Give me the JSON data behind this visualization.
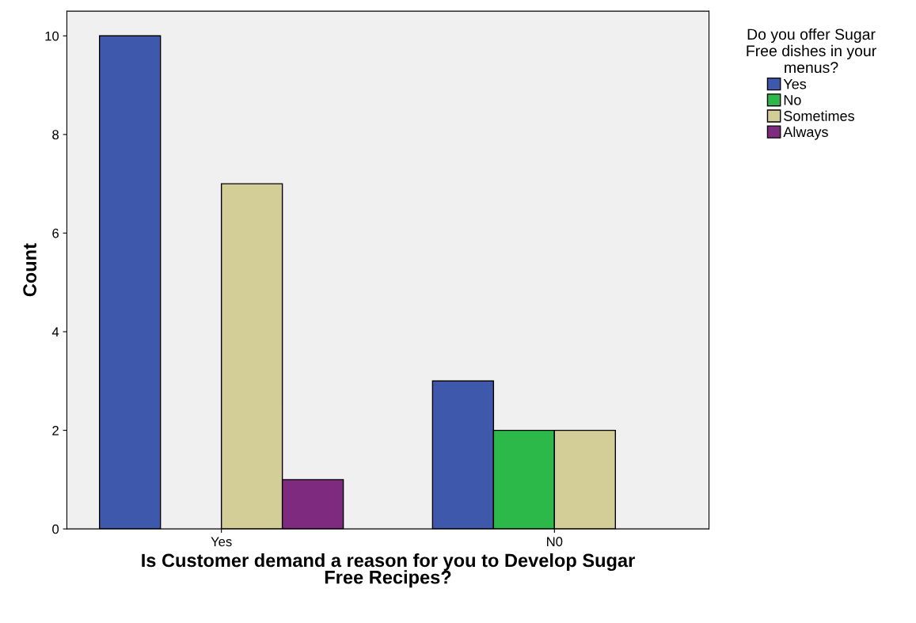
{
  "chart_data": {
    "type": "bar",
    "categories": [
      "Yes",
      "N0"
    ],
    "xlabel": "Is Customer demand a reason for you to Develop Sugar\nFree Recipes?",
    "ylabel": "Count",
    "legend_title": "Do you offer Sugar\nFree dishes in your\nmenus?",
    "series": [
      {
        "name": "Yes",
        "color": "#3e58ac",
        "values": [
          10,
          3
        ]
      },
      {
        "name": "No",
        "color": "#2db84a",
        "values": [
          null,
          2
        ]
      },
      {
        "name": "Sometimes",
        "color": "#d3ce97",
        "values": [
          7,
          2
        ]
      },
      {
        "name": "Always",
        "color": "#7e2a7f",
        "values": [
          1,
          null
        ]
      }
    ],
    "ylim": [
      0,
      10.5
    ],
    "yticks": [
      0,
      2,
      4,
      6,
      8,
      10
    ],
    "grid": false,
    "legend": "top right"
  }
}
